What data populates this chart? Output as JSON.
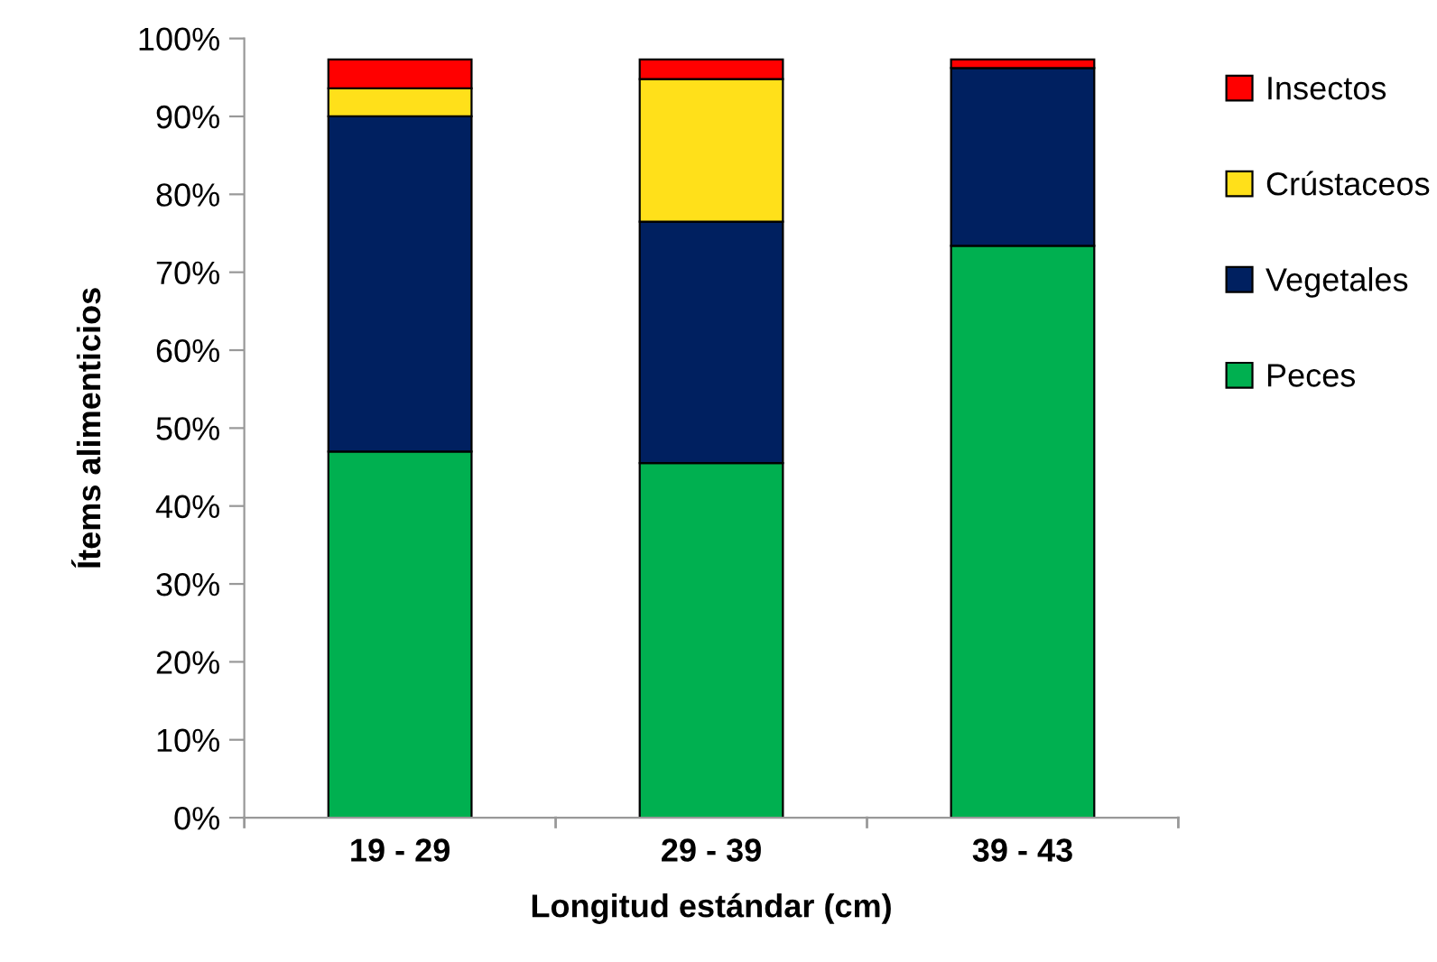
{
  "chart_data": {
    "type": "bar",
    "stacked": true,
    "xlabel": "Longitud estándar (cm)",
    "ylabel": "Ítems alimenticios",
    "categories": [
      "19 - 29",
      "29 - 39",
      "39 - 43"
    ],
    "series": [
      {
        "name": "Peces",
        "color": "#00b050",
        "values": [
          47.0,
          45.5,
          73.4
        ]
      },
      {
        "name": "Vegetales",
        "color": "#002060",
        "values": [
          43.0,
          31.0,
          22.8
        ]
      },
      {
        "name": "Crústaceos",
        "color": "#ffe01a",
        "values": [
          3.6,
          18.3,
          0
        ]
      },
      {
        "name": "Insectos",
        "color": "#ff0000",
        "values": [
          3.7,
          2.5,
          1.1
        ]
      }
    ],
    "ylim": [
      0,
      100
    ],
    "yticks": [
      {
        "value": 0,
        "label": "0%"
      },
      {
        "value": 10,
        "label": "10%"
      },
      {
        "value": 20,
        "label": "20%"
      },
      {
        "value": 30,
        "label": "30%"
      },
      {
        "value": 40,
        "label": "40%"
      },
      {
        "value": 50,
        "label": "50%"
      },
      {
        "value": 60,
        "label": "60%"
      },
      {
        "value": 70,
        "label": "70%"
      },
      {
        "value": 80,
        "label": "80%"
      },
      {
        "value": 90,
        "label": "90%"
      },
      {
        "value": 100,
        "label": "100%"
      }
    ],
    "grid": false,
    "legend": "right"
  }
}
